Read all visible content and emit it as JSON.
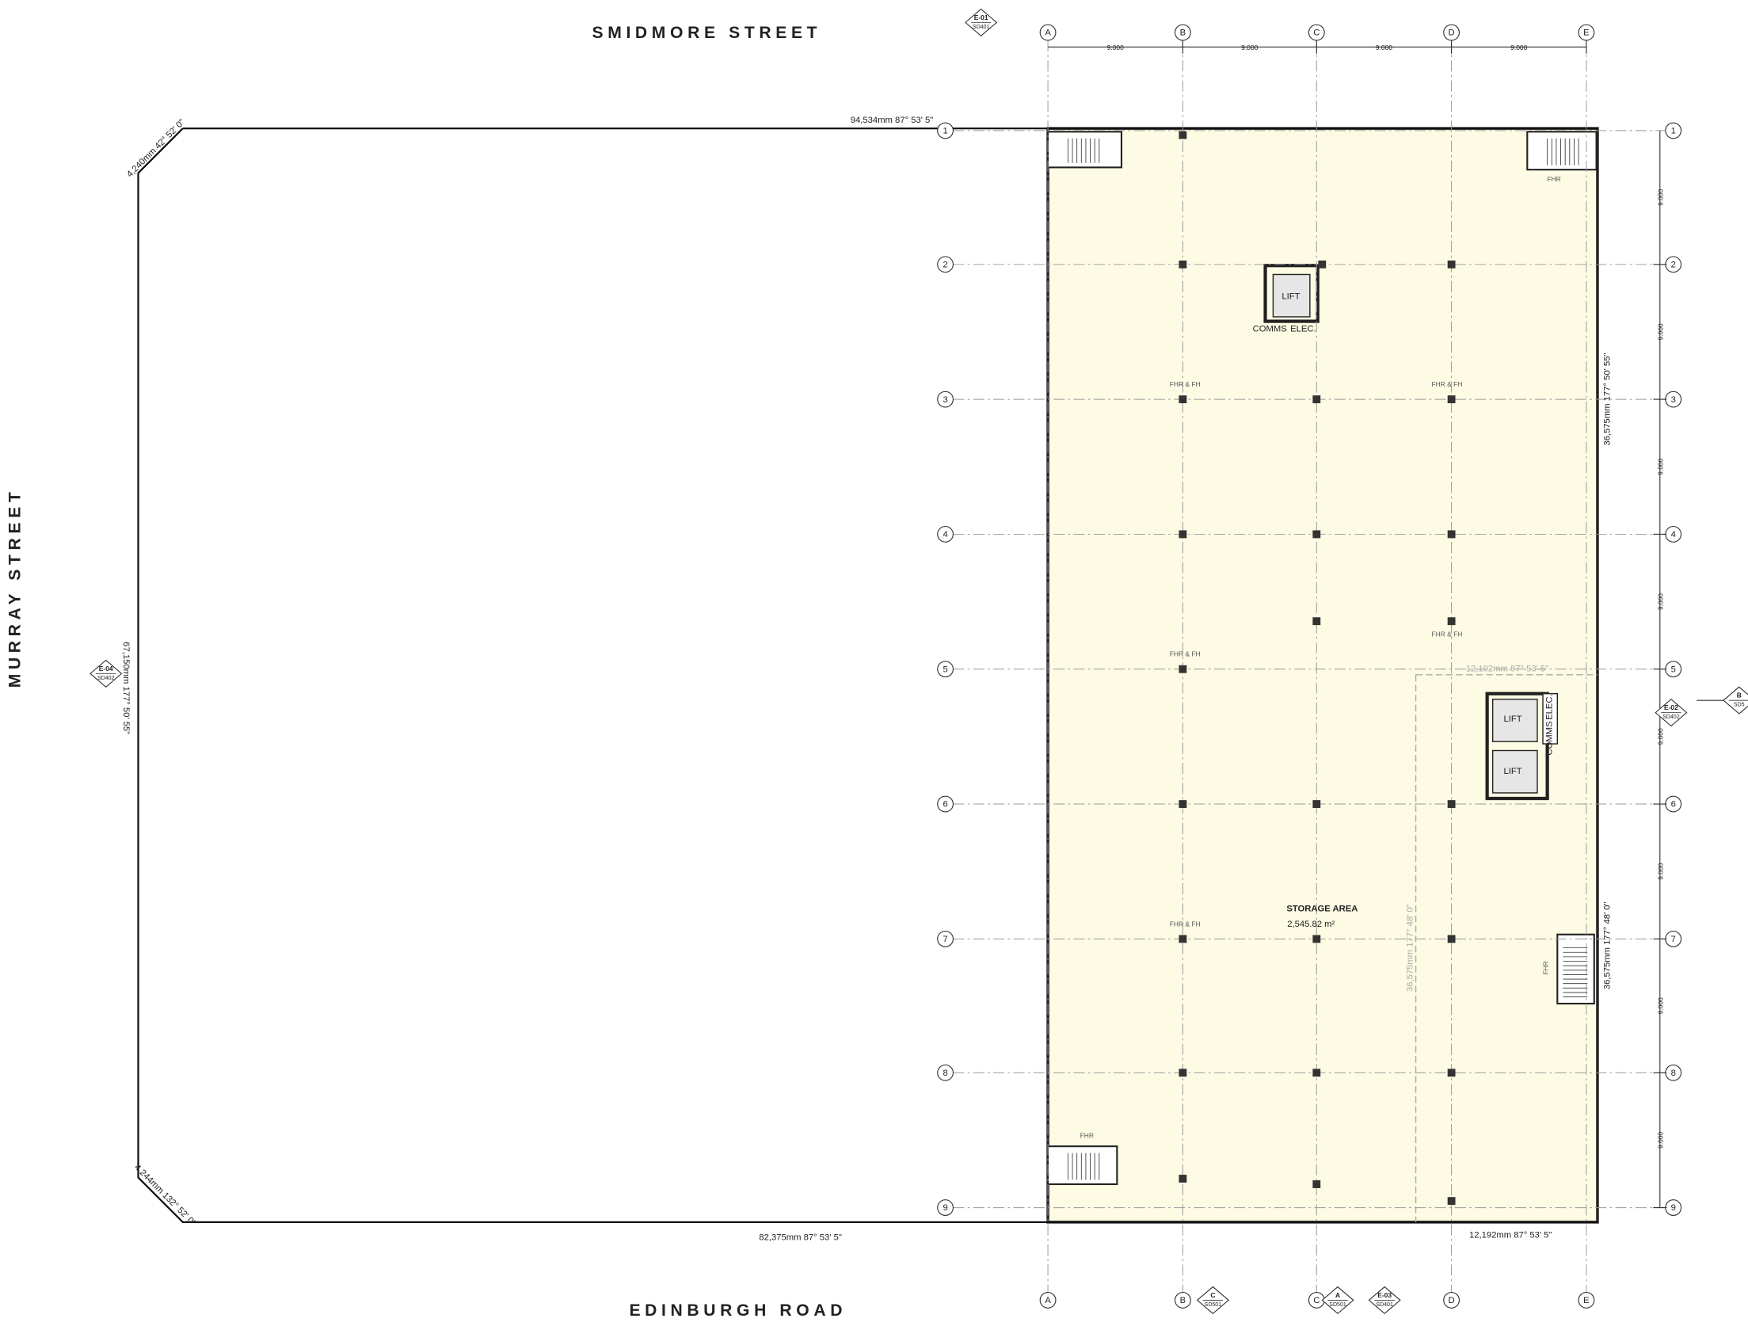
{
  "streets": {
    "north": "SMIDMORE STREET",
    "west": "MURRAY STREET",
    "south": "EDINBURGH ROAD"
  },
  "grid": {
    "columns": [
      "A",
      "B",
      "C",
      "D",
      "E"
    ],
    "rows": [
      "1",
      "2",
      "3",
      "4",
      "5",
      "6",
      "7",
      "8",
      "9"
    ],
    "column_spacings": [
      "9.000",
      "9.000",
      "9.000",
      "9.000"
    ],
    "row_spacings": [
      "9.000",
      "9.000",
      "9.000",
      "9.000",
      "9.000",
      "9.000",
      "9.000",
      "9.000"
    ]
  },
  "boundary": [
    "94,534mm  87° 53' 5\"",
    "4,240mm  42° 52' 0\"",
    "67,150mm  177° 50' 55\"",
    "4,244mm  132° 52' 0\"",
    "82,375mm  87° 53' 5\"",
    "36,575mm  177° 50' 55\"",
    "36,575mm  177° 48' 0\"",
    "12,192mm  87° 53' 5\"",
    "12,192mm  87° 53' 5\"",
    "36,575mm  177° 48' 0\""
  ],
  "rooms": {
    "area_name": "STORAGE AREA",
    "area": "2,545.82 m²",
    "lifts": [
      "LIFT",
      "LIFT",
      "LIFT"
    ],
    "comms": [
      "COMMS",
      "COMMS"
    ],
    "elec": [
      "ELEC.",
      "ELEC."
    ],
    "fhr": [
      "FHR",
      "FHR",
      "FHR"
    ],
    "fhr_fh": [
      "FHR & FH",
      "FHR & FH",
      "FHR & FH",
      "FHR & FH",
      "FHR & FH"
    ]
  },
  "markers": [
    {
      "id": "E-01",
      "sheet": "SD401"
    },
    {
      "id": "E-04",
      "sheet": "SD402"
    },
    {
      "id": "E-02",
      "sheet": "SD402"
    },
    {
      "id": "E-03",
      "sheet": "SD401"
    },
    {
      "id": "C",
      "sheet": "SD501"
    },
    {
      "id": "A",
      "sheet": "SD501"
    },
    {
      "id": "B",
      "sheet": "SD5"
    }
  ]
}
